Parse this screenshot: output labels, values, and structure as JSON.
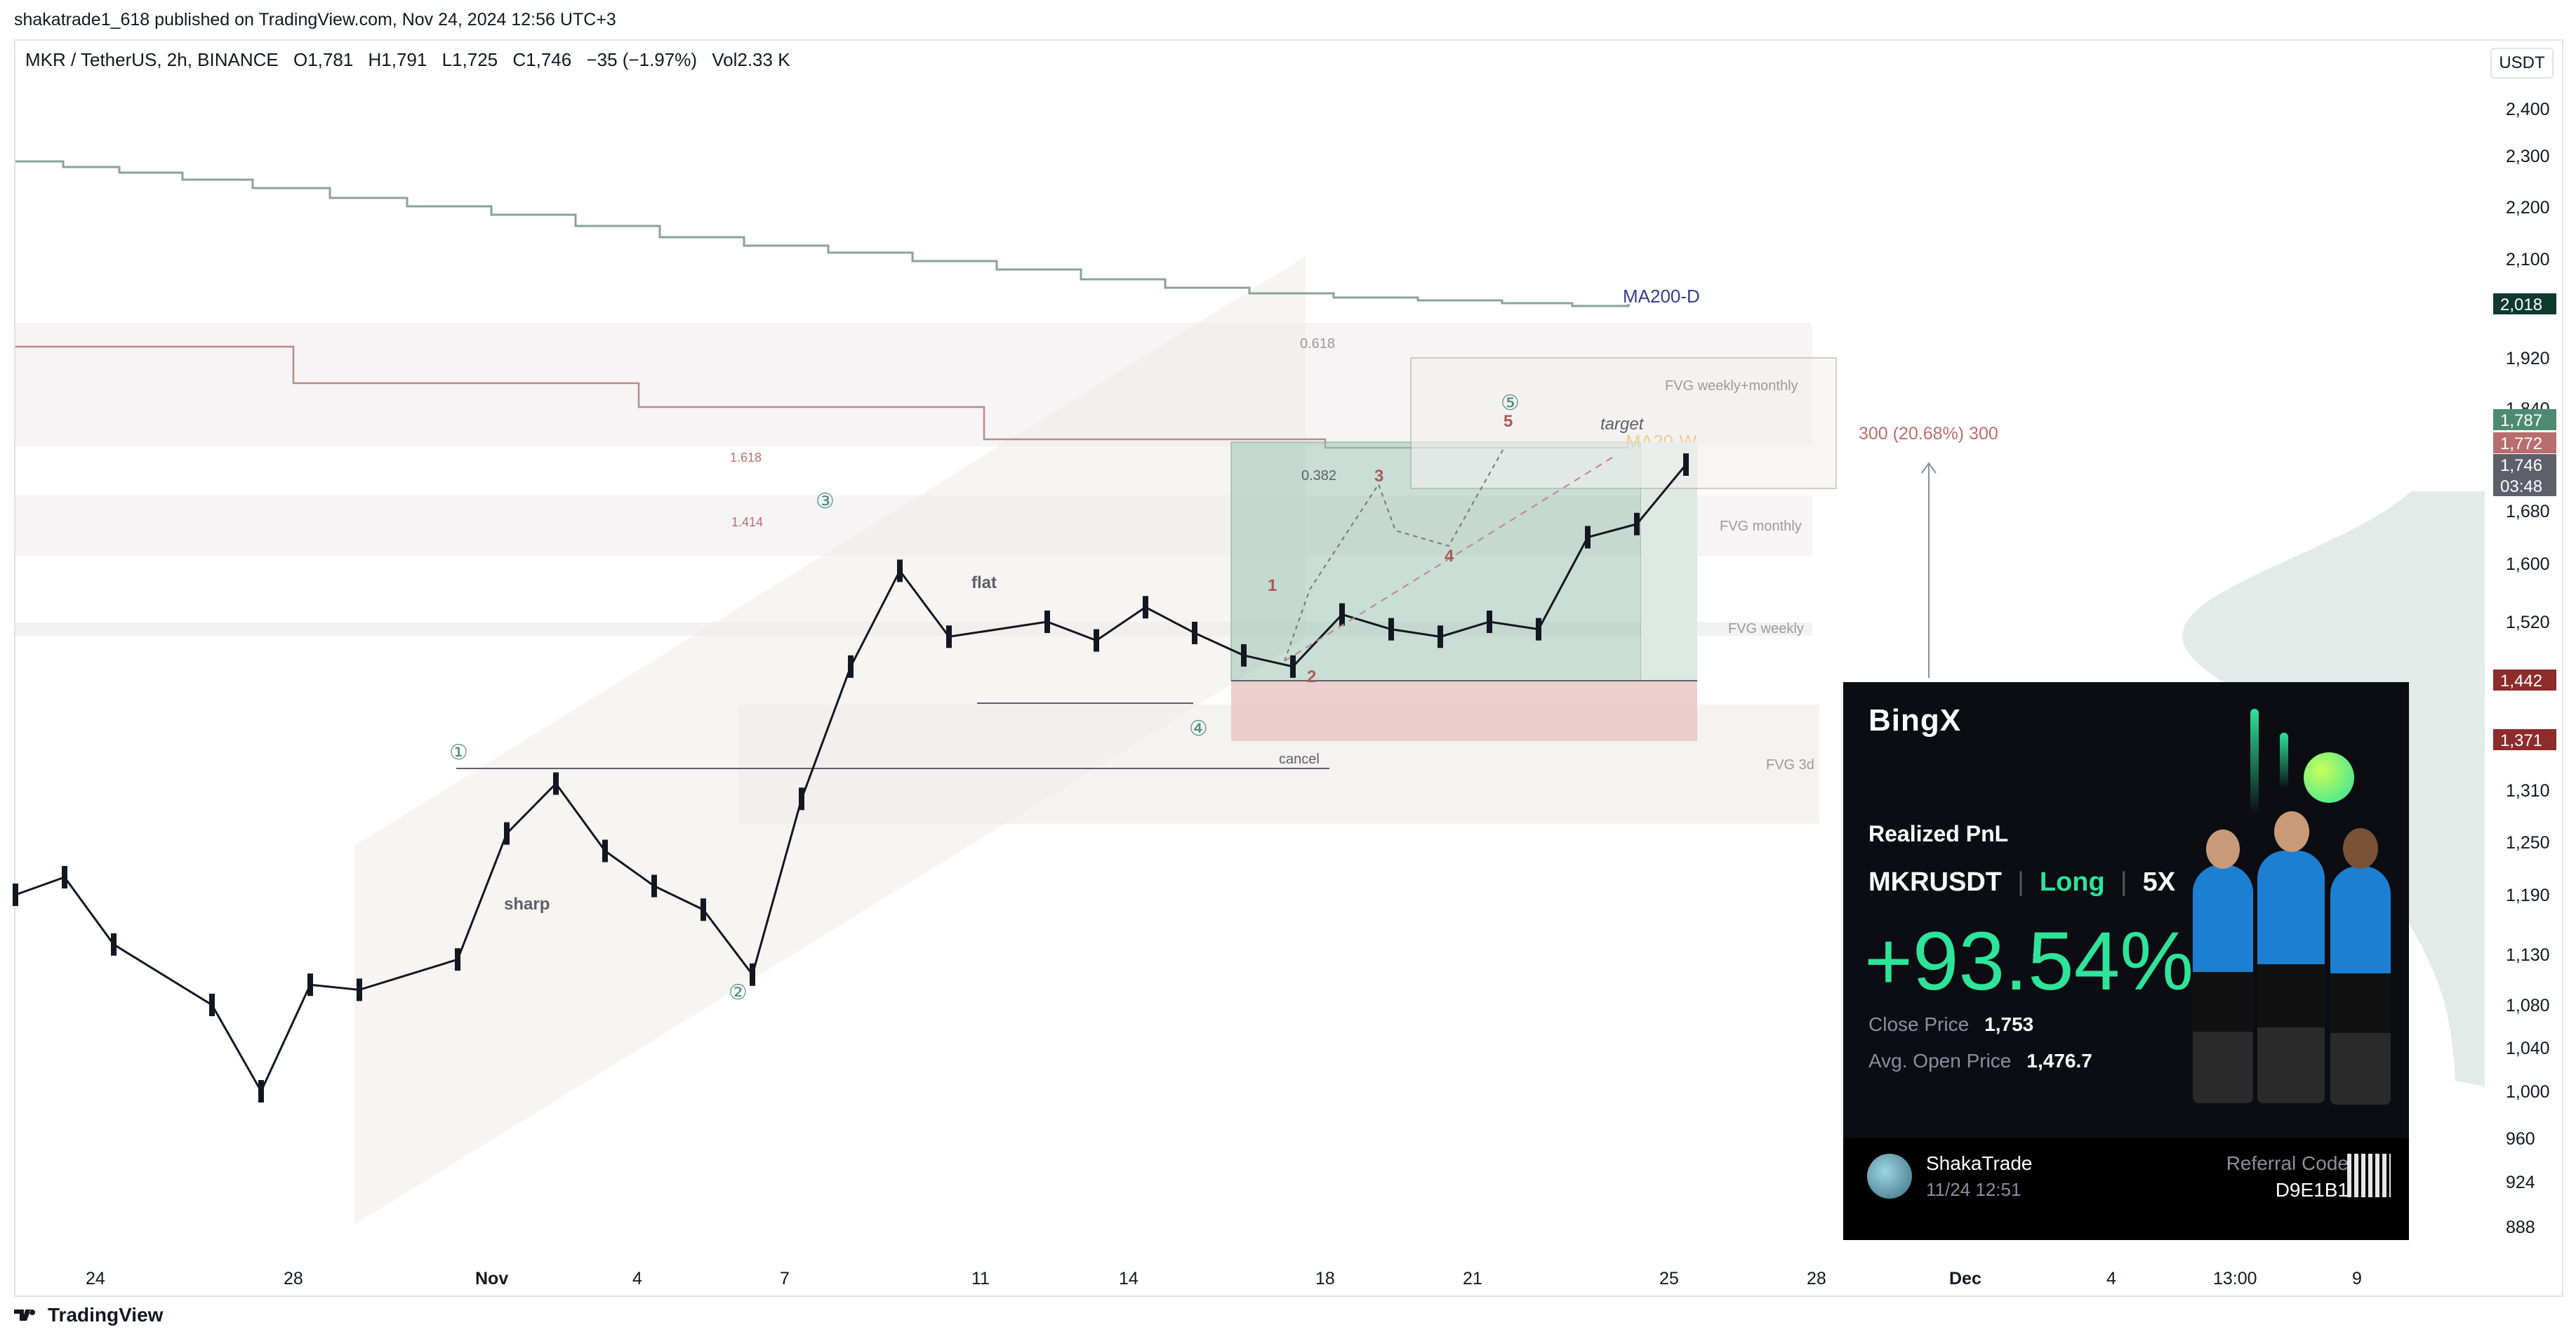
{
  "header": {
    "published": "shakatrade1_618 published on TradingView.com, Nov 24, 2024 12:56 UTC+3"
  },
  "legend": {
    "symbol": "MKR / TetherUS, 2h, BINANCE",
    "open": "O1,781",
    "high": "H1,791",
    "low": "L1,725",
    "close": "C1,746",
    "change": "−35 (−1.97%)",
    "vol": "Vol2.33 K"
  },
  "currency": "USDT",
  "footer": {
    "brand": "TradingView",
    "logo_icon": "tradingview-logo-icon"
  },
  "colors": {
    "up": "#787b86",
    "price_line": "#131722",
    "ma200d": "#8aa39b",
    "ma20w": "#b98a8a",
    "target_box": "#6fa596",
    "stop_box": "#e8b6b6",
    "accent": "#2ee39a"
  },
  "chart_data": {
    "type": "candlestick",
    "title": "",
    "y_ticks": [
      "2,400",
      "2,300",
      "2,200",
      "2,100",
      "1,920",
      "1,840",
      "1,680",
      "1,600",
      "1,520",
      "1,310",
      "1,250",
      "1,190",
      "1,130",
      "1,080",
      "1,040",
      "1,000",
      "960",
      "924",
      "888"
    ],
    "x_ticks": [
      "24",
      "28",
      "Nov",
      "4",
      "7",
      "11",
      "14",
      "18",
      "21",
      "25",
      "28",
      "Dec",
      "4",
      "13:00",
      "9"
    ],
    "price_path": [
      {
        "x": "Oct 21",
        "y": 1190
      },
      {
        "x": "Oct 22",
        "y": 1210
      },
      {
        "x": "Oct 23",
        "y": 1140
      },
      {
        "x": "Oct 25",
        "y": 1080
      },
      {
        "x": "Oct 26",
        "y": 1000
      },
      {
        "x": "Oct 27",
        "y": 1100
      },
      {
        "x": "Oct 28",
        "y": 1095
      },
      {
        "x": "Oct 30",
        "y": 1125
      },
      {
        "x": "Oct 31",
        "y": 1260
      },
      {
        "x": "Nov 1",
        "y": 1318
      },
      {
        "x": "Nov 2",
        "y": 1240
      },
      {
        "x": "Nov 3",
        "y": 1200
      },
      {
        "x": "Nov 4",
        "y": 1175
      },
      {
        "x": "Nov 5",
        "y": 1110
      },
      {
        "x": "Nov 6",
        "y": 1300
      },
      {
        "x": "Nov 7",
        "y": 1460
      },
      {
        "x": "Nov 8",
        "y": 1590
      },
      {
        "x": "Nov 9",
        "y": 1500
      },
      {
        "x": "Nov 11",
        "y": 1520
      },
      {
        "x": "Nov 12",
        "y": 1495
      },
      {
        "x": "Nov 13",
        "y": 1540
      },
      {
        "x": "Nov 14",
        "y": 1505
      },
      {
        "x": "Nov 15",
        "y": 1475
      },
      {
        "x": "Nov 16",
        "y": 1460
      },
      {
        "x": "Nov 17",
        "y": 1530
      },
      {
        "x": "Nov 18",
        "y": 1510
      },
      {
        "x": "Nov 19",
        "y": 1500
      },
      {
        "x": "Nov 20",
        "y": 1520
      },
      {
        "x": "Nov 21",
        "y": 1510
      },
      {
        "x": "Nov 22",
        "y": 1640
      },
      {
        "x": "Nov 23",
        "y": 1660
      },
      {
        "x": "Nov 24",
        "y": 1746
      }
    ],
    "price_labels": [
      {
        "value": "2,018",
        "color": "#0f3b2e"
      },
      {
        "value": "1,787",
        "color": "#4d8a73"
      },
      {
        "value": "1,772",
        "color": "#b86e6e"
      },
      {
        "value": "1,746",
        "color": "#5d606b"
      },
      {
        "value": "03:48",
        "color": "#5d606b"
      },
      {
        "value": "1,442",
        "color": "#8e2b2b"
      },
      {
        "value": "1,371",
        "color": "#8e2b2b"
      }
    ],
    "labels": {
      "ma200d": "MA200-D",
      "ma20w": "MA20-W",
      "target": "target",
      "measure": "300 (20.68%) 300",
      "fvg_wm": "FVG weekly+monthly",
      "fvg_m": "FVG monthly",
      "fvg_w": "FVG weekly",
      "fvg_3d": "FVG 3d",
      "flat": "flat",
      "sharp": "sharp",
      "cancel": "cancel",
      "fib_618": "0.618",
      "fib_382": "0.382",
      "fib_1618": "1.618",
      "fib_1414": "1.414",
      "wave1": "①",
      "wave2": "②",
      "wave3": "③",
      "wave4": "④",
      "wave5": "⑤",
      "sub1": "1",
      "sub2": "2",
      "sub3": "3",
      "sub4": "4",
      "sub5": "5"
    }
  },
  "pnl_card": {
    "brand": "BingX",
    "realized_label": "Realized PnL",
    "symbol": "MKRUSDT",
    "side": "Long",
    "leverage": "5X",
    "percent": "+93.54%",
    "close_label": "Close Price",
    "close_value": "1,753",
    "open_label": "Avg. Open Price",
    "open_value": "1,476.7",
    "user": "ShakaTrade",
    "date": "11/24 12:51",
    "ref_label": "Referral Code",
    "ref_code": "D9E1B1"
  }
}
